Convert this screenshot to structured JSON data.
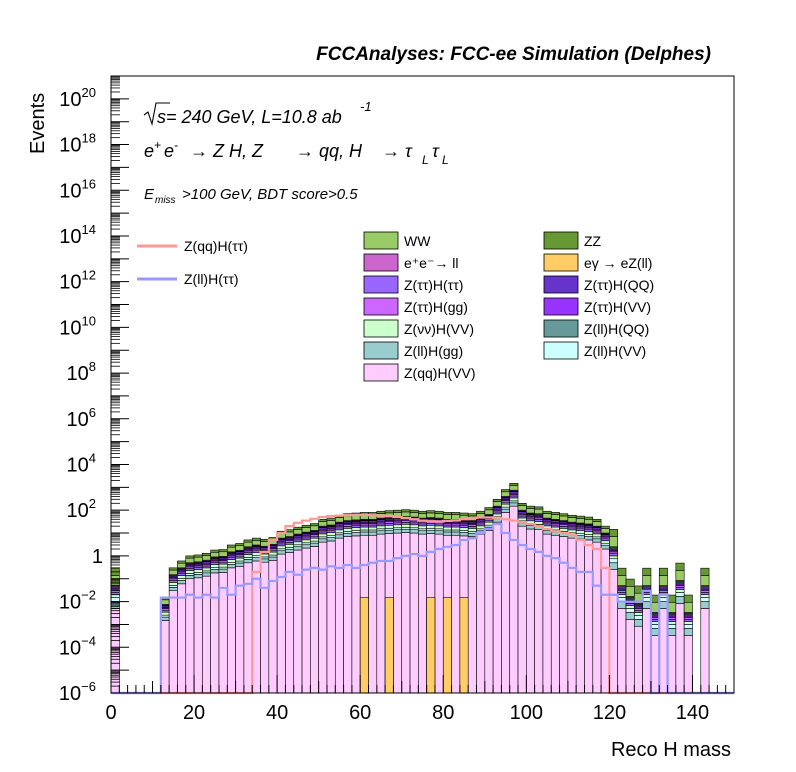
{
  "chart_data": {
    "type": "histogram",
    "title": "FCCAnalyses: FCC-ee Simulation (Delphes)",
    "xlabel": "Reco H mass",
    "ylabel": "Events",
    "xlim": [
      0,
      150
    ],
    "ylim": [
      1e-06,
      1e+21
    ],
    "yscale": "log",
    "bin_width": 2,
    "x_ticks": [
      0,
      20,
      40,
      60,
      80,
      100,
      120,
      140
    ],
    "y_ticks": [
      {
        "base": "10",
        "exp": "−6",
        "value": 1e-06
      },
      {
        "base": "10",
        "exp": "−4",
        "value": 0.0001
      },
      {
        "base": "10",
        "exp": "−2",
        "value": 0.01
      },
      {
        "base": "1",
        "exp": "",
        "value": 1
      },
      {
        "base": "10",
        "exp": "2",
        "value": 100.0
      },
      {
        "base": "10",
        "exp": "4",
        "value": 10000.0
      },
      {
        "base": "10",
        "exp": "6",
        "value": 1000000.0
      },
      {
        "base": "10",
        "exp": "8",
        "value": 100000000.0
      },
      {
        "base": "10",
        "exp": "10",
        "value": 10000000000.0
      },
      {
        "base": "10",
        "exp": "12",
        "value": 1000000000000.0
      },
      {
        "base": "10",
        "exp": "14",
        "value": 100000000000000.0
      },
      {
        "base": "10",
        "exp": "16",
        "value": 1e+16
      },
      {
        "base": "10",
        "exp": "18",
        "value": 1e+18
      },
      {
        "base": "10",
        "exp": "20",
        "value": 1e+20
      }
    ],
    "annotations": {
      "energy_sqrt": "s",
      "energy_rest": " = 240 GeV, L=10.8 ab",
      "energy_exp": "-1",
      "process": "e⁺e⁻ → Z H, Z → qq, H → τLτL",
      "process_parts": {
        "ee": "e",
        "plus": "+",
        "minus": "-",
        "arrow1": "→ Z H, Z",
        "arrow2": "→ qq, H",
        "arrow3": "→ τ",
        "tau2": "τ",
        "sub": "L"
      },
      "cut_main": "E",
      "cut_sub": "miss",
      "cut_rest": ">100 GeV, BDT score>0.5"
    },
    "stacked_backgrounds": [
      {
        "name": "WW",
        "color": "#99cc66"
      },
      {
        "name": "ZZ",
        "color": "#669933"
      },
      {
        "name": "e⁺e⁻→ ll",
        "color": "#cc66cc"
      },
      {
        "name": "eγ → eZ(ll)",
        "color": "#ffcc66"
      },
      {
        "name": "Z(ττ)H(ττ)",
        "color": "#9966ff"
      },
      {
        "name": "Z(ττ)H(QQ)",
        "color": "#6633cc"
      },
      {
        "name": "Z(ττ)H(gg)",
        "color": "#cc66ff"
      },
      {
        "name": "Z(ττ)H(VV)",
        "color": "#9933ff"
      },
      {
        "name": "Z(νν)H(VV)",
        "color": "#ccffcc"
      },
      {
        "name": "Z(ll)H(QQ)",
        "color": "#669999"
      },
      {
        "name": "Z(ll)H(gg)",
        "color": "#99cccc"
      },
      {
        "name": "Z(ll)H(VV)",
        "color": "#ccffff"
      },
      {
        "name": "Z(qq)H(VV)",
        "color": "#ffccff"
      }
    ],
    "signals": [
      {
        "name": "Z(qq)H(ττ)",
        "color": "#ff9999"
      },
      {
        "name": "Z(ll)H(ττ)",
        "color": "#9999ff"
      }
    ],
    "stack_total_per_bin": [
      0.3,
      1e-06,
      1e-06,
      1e-06,
      1e-06,
      1e-06,
      0.015,
      0.3,
      0.6,
      1.0,
      1.1,
      1.3,
      1.8,
      1.9,
      3.0,
      3.5,
      5.0,
      6.0,
      5.3,
      6.4,
      12,
      14,
      18,
      22,
      26,
      40,
      45,
      60,
      70,
      75,
      80,
      80,
      90,
      95,
      100,
      105,
      100,
      90,
      95,
      90,
      80,
      80,
      75,
      70,
      90,
      130,
      300,
      800,
      1500,
      200,
      150,
      140,
      90,
      80,
      70,
      60,
      55,
      50,
      40,
      20,
      15,
      0.3,
      0.1,
      0.05,
      0.3,
      0.02,
      0.3,
      0.02,
      0.5,
      0.02,
      1e-06,
      0.3,
      1e-06,
      1e-06,
      1e-06
    ],
    "signal_qqtautau_per_bin": [
      1e-06,
      1e-06,
      1e-06,
      1e-06,
      1e-06,
      1e-06,
      1e-06,
      1e-06,
      1e-06,
      1e-06,
      1e-06,
      1e-06,
      1e-06,
      1e-06,
      1e-06,
      1e-06,
      1e-06,
      0.2,
      1.5,
      5,
      10,
      20,
      28,
      35,
      42,
      50,
      55,
      58,
      60,
      62,
      62,
      60,
      58,
      55,
      50,
      45,
      40,
      35,
      33,
      32,
      34,
      36,
      40,
      45,
      48,
      48,
      45,
      40,
      35,
      30,
      25,
      20,
      15,
      12,
      10,
      8,
      5,
      3,
      2,
      0.3,
      1e-06,
      1e-06,
      1e-06,
      1e-06,
      1e-06,
      1e-06,
      1e-06,
      1e-06,
      1e-06,
      1e-06,
      1e-06,
      1e-06,
      1e-06,
      1e-06,
      1e-06
    ],
    "signal_lltautau_per_bin": [
      1e-06,
      1e-06,
      1e-06,
      1e-06,
      1e-06,
      1e-06,
      0.015,
      0.015,
      0.015,
      0.02,
      0.015,
      0.02,
      0.015,
      0.04,
      0.02,
      0.05,
      0.06,
      0.1,
      0.04,
      0.08,
      0.12,
      0.2,
      0.15,
      0.25,
      0.3,
      0.25,
      0.35,
      0.3,
      0.4,
      0.3,
      0.4,
      0.5,
      0.6,
      0.6,
      0.8,
      1.0,
      1.2,
      1.0,
      1.5,
      2.0,
      2.5,
      3.0,
      5.0,
      6.0,
      10,
      15,
      25,
      10,
      5.0,
      3.0,
      2.0,
      1.5,
      1.0,
      0.8,
      0.5,
      0.3,
      0.2,
      0.2,
      0.05,
      0.02,
      0.02,
      0.01,
      0.01,
      0.01,
      0.03,
      1e-06,
      0.02,
      1e-06,
      1e-06,
      1e-06,
      1e-06,
      1e-06,
      1e-06,
      1e-06,
      1e-06
    ],
    "grid": false,
    "legend_placement": "top"
  }
}
